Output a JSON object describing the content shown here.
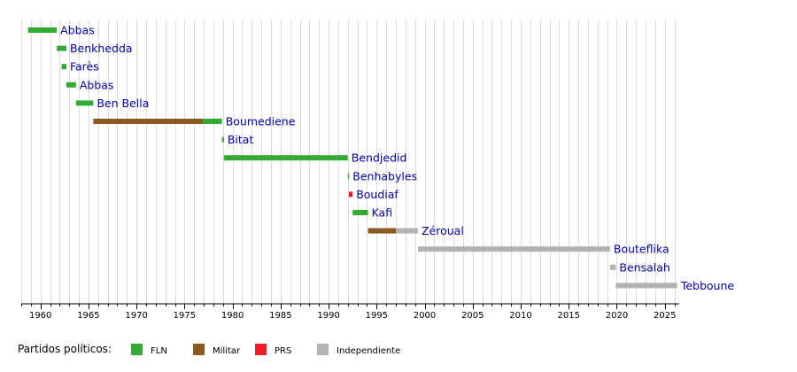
{
  "chart_data": {
    "type": "bar",
    "orientation": "horizontal-timeline",
    "xlim": [
      1958,
      2026.5
    ],
    "grid": true,
    "tick_labels": [
      "1960",
      "1965",
      "1970",
      "1975",
      "1980",
      "1985",
      "1990",
      "1995",
      "2000",
      "2005",
      "2010",
      "2015",
      "2020",
      "2025"
    ],
    "legend_title": "Partidos políticos:",
    "legend": [
      {
        "key": "FLN",
        "label": "FLN",
        "color": "#33aa33"
      },
      {
        "key": "Militar",
        "label": "Militar",
        "color": "#8b5a1e"
      },
      {
        "key": "PRS",
        "label": "PRS",
        "color": "#ee1c25"
      },
      {
        "key": "Independiente",
        "label": "Independiente",
        "color": "#b3b3b3"
      }
    ],
    "rows": [
      {
        "label": "Abbas",
        "segments": [
          {
            "start": 1958.7,
            "end": 1961.7,
            "party": "FLN"
          }
        ]
      },
      {
        "label": "Benkhedda",
        "segments": [
          {
            "start": 1961.7,
            "end": 1962.7,
            "party": "FLN"
          }
        ]
      },
      {
        "label": "Farès",
        "segments": [
          {
            "start": 1962.2,
            "end": 1962.7,
            "party": "FLN"
          }
        ]
      },
      {
        "label": "Abbas",
        "segments": [
          {
            "start": 1962.7,
            "end": 1963.7,
            "party": "FLN"
          }
        ]
      },
      {
        "label": "Ben Bella",
        "segments": [
          {
            "start": 1963.7,
            "end": 1965.5,
            "party": "FLN"
          }
        ]
      },
      {
        "label": "Boumediene",
        "segments": [
          {
            "start": 1965.5,
            "end": 1976.9,
            "party": "Militar"
          },
          {
            "start": 1976.9,
            "end": 1978.9,
            "party": "FLN"
          }
        ]
      },
      {
        "label": "Bitat",
        "segments": [
          {
            "start": 1978.9,
            "end": 1979.1,
            "party": "FLN"
          }
        ]
      },
      {
        "label": "Bendjedid",
        "segments": [
          {
            "start": 1979.1,
            "end": 1992.0,
            "party": "FLN"
          }
        ]
      },
      {
        "label": "Benhabyles",
        "segments": [
          {
            "start": 1992.0,
            "end": 1992.1,
            "party": "FLN"
          }
        ]
      },
      {
        "label": "Boudiaf",
        "segments": [
          {
            "start": 1992.1,
            "end": 1992.5,
            "party": "PRS"
          }
        ]
      },
      {
        "label": "Kafi",
        "segments": [
          {
            "start": 1992.5,
            "end": 1994.1,
            "party": "FLN"
          }
        ]
      },
      {
        "label": "Zéroual",
        "segments": [
          {
            "start": 1994.1,
            "end": 1997.0,
            "party": "Militar"
          },
          {
            "start": 1997.0,
            "end": 1999.3,
            "party": "Independiente"
          }
        ]
      },
      {
        "label": "Bouteflika",
        "segments": [
          {
            "start": 1999.3,
            "end": 2019.3,
            "party": "Independiente"
          }
        ]
      },
      {
        "label": "Bensalah",
        "segments": [
          {
            "start": 2019.3,
            "end": 2019.9,
            "party": "Independiente"
          }
        ]
      },
      {
        "label": "Tebboune",
        "segments": [
          {
            "start": 2019.9,
            "end": 2026.3,
            "party": "Independiente"
          }
        ]
      }
    ]
  }
}
